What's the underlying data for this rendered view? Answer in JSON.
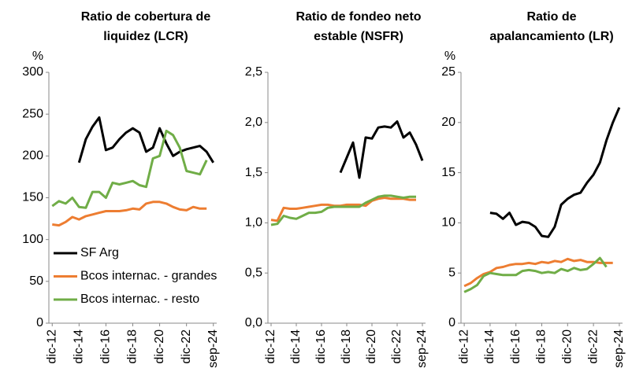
{
  "chart_data": [
    {
      "type": "line",
      "title": [
        "Ratio de cobertura de",
        "liquidez (LCR)"
      ],
      "y_label": "%",
      "categories": [
        "dic-12",
        null,
        null,
        null,
        "dic-14",
        null,
        null,
        null,
        "dic-16",
        null,
        null,
        null,
        "dic-18",
        null,
        null,
        null,
        "dic-20",
        null,
        null,
        null,
        "dic-22",
        null,
        null,
        null,
        "sep-24"
      ],
      "ylim": [
        0,
        300
      ],
      "yticks": [
        0,
        50,
        100,
        150,
        200,
        250,
        300
      ],
      "legend": true,
      "series": [
        {
          "name": "SF Arg",
          "color": "#000000",
          "values": [
            null,
            null,
            null,
            null,
            192,
            220,
            235,
            246,
            207,
            210,
            220,
            228,
            233,
            228,
            205,
            210,
            233,
            215,
            200,
            205,
            208,
            210,
            212,
            205,
            192
          ]
        },
        {
          "name": "Bcos internac. - grandes",
          "color": "#ed7d31",
          "values": [
            118,
            117,
            121,
            127,
            124,
            128,
            130,
            132,
            134,
            134,
            134,
            135,
            137,
            136,
            143,
            145,
            145,
            143,
            139,
            136,
            135,
            139,
            137,
            137,
            null
          ]
        },
        {
          "name": "Bcos internac. - resto",
          "color": "#70ad47",
          "values": [
            140,
            146,
            143,
            150,
            139,
            138,
            157,
            157,
            150,
            168,
            166,
            168,
            170,
            165,
            163,
            197,
            200,
            230,
            225,
            210,
            182,
            180,
            178,
            195,
            null
          ]
        }
      ]
    },
    {
      "type": "line",
      "title": [
        "Ratio de fondeo neto",
        "estable (NSFR)"
      ],
      "categories": [
        "dic-12",
        null,
        null,
        null,
        "dic-14",
        null,
        null,
        null,
        "dic-16",
        null,
        null,
        null,
        "dic-18",
        null,
        null,
        null,
        "dic-20",
        null,
        null,
        null,
        "dic-22",
        null,
        null,
        null,
        "sep-24"
      ],
      "ylim": [
        0,
        2.5
      ],
      "yticks": [
        {
          "value": 0,
          "label": "0,0"
        },
        {
          "value": 0.5,
          "label": "0,5"
        },
        {
          "value": 1,
          "label": "1,0"
        },
        {
          "value": 1.5,
          "label": "1,5"
        },
        {
          "value": 2,
          "label": "2,0"
        },
        {
          "value": 2.5,
          "label": "2,5"
        }
      ],
      "series": [
        {
          "color": "#000000",
          "values": [
            null,
            null,
            null,
            null,
            null,
            null,
            null,
            null,
            null,
            null,
            null,
            1.5,
            1.65,
            1.8,
            1.45,
            1.85,
            1.84,
            1.95,
            1.96,
            1.95,
            2.01,
            1.85,
            1.9,
            1.78,
            1.62
          ]
        },
        {
          "color": "#ed7d31",
          "values": [
            1.03,
            1.02,
            1.15,
            1.14,
            1.14,
            1.15,
            1.16,
            1.17,
            1.18,
            1.18,
            1.17,
            1.17,
            1.18,
            1.18,
            1.18,
            1.17,
            1.22,
            1.24,
            1.25,
            1.24,
            1.24,
            1.24,
            1.23,
            1.23,
            null
          ]
        },
        {
          "color": "#70ad47",
          "values": [
            0.98,
            0.99,
            1.07,
            1.05,
            1.04,
            1.07,
            1.1,
            1.1,
            1.11,
            1.15,
            1.16,
            1.16,
            1.16,
            1.16,
            1.16,
            1.2,
            1.23,
            1.26,
            1.27,
            1.27,
            1.26,
            1.25,
            1.26,
            1.26,
            null
          ]
        }
      ]
    },
    {
      "type": "line",
      "title": [
        "Ratio de",
        "apalancamiento (LR)"
      ],
      "y_label": "%",
      "categories": [
        "dic-12",
        null,
        null,
        null,
        "dic-14",
        null,
        null,
        null,
        "dic-16",
        null,
        null,
        null,
        "dic-18",
        null,
        null,
        null,
        "dic-20",
        null,
        null,
        null,
        "dic-22",
        null,
        null,
        null,
        "sep-24"
      ],
      "ylim": [
        0,
        25
      ],
      "yticks": [
        0,
        5,
        10,
        15,
        20,
        25
      ],
      "series": [
        {
          "color": "#000000",
          "values": [
            null,
            null,
            null,
            null,
            11,
            10.9,
            10.4,
            11,
            9.8,
            10.1,
            10,
            9.6,
            8.7,
            8.6,
            9.6,
            11.8,
            12.4,
            12.8,
            13,
            14,
            14.8,
            16,
            18.2,
            20,
            21.5
          ]
        },
        {
          "color": "#ed7d31",
          "values": [
            3.7,
            4.0,
            4.5,
            4.9,
            5.1,
            5.5,
            5.6,
            5.8,
            5.9,
            5.9,
            6.0,
            5.9,
            6.1,
            6.0,
            6.2,
            6.1,
            6.4,
            6.2,
            6.3,
            6.1,
            6.1,
            6.0,
            6.0,
            6.0,
            null
          ]
        },
        {
          "color": "#70ad47",
          "values": [
            3.1,
            3.4,
            3.8,
            4.7,
            5.0,
            4.9,
            4.8,
            4.8,
            4.8,
            5.2,
            5.3,
            5.2,
            5.0,
            5.1,
            5.0,
            5.4,
            5.2,
            5.5,
            5.3,
            5.4,
            5.9,
            6.5,
            5.6,
            null,
            null
          ]
        }
      ]
    }
  ]
}
